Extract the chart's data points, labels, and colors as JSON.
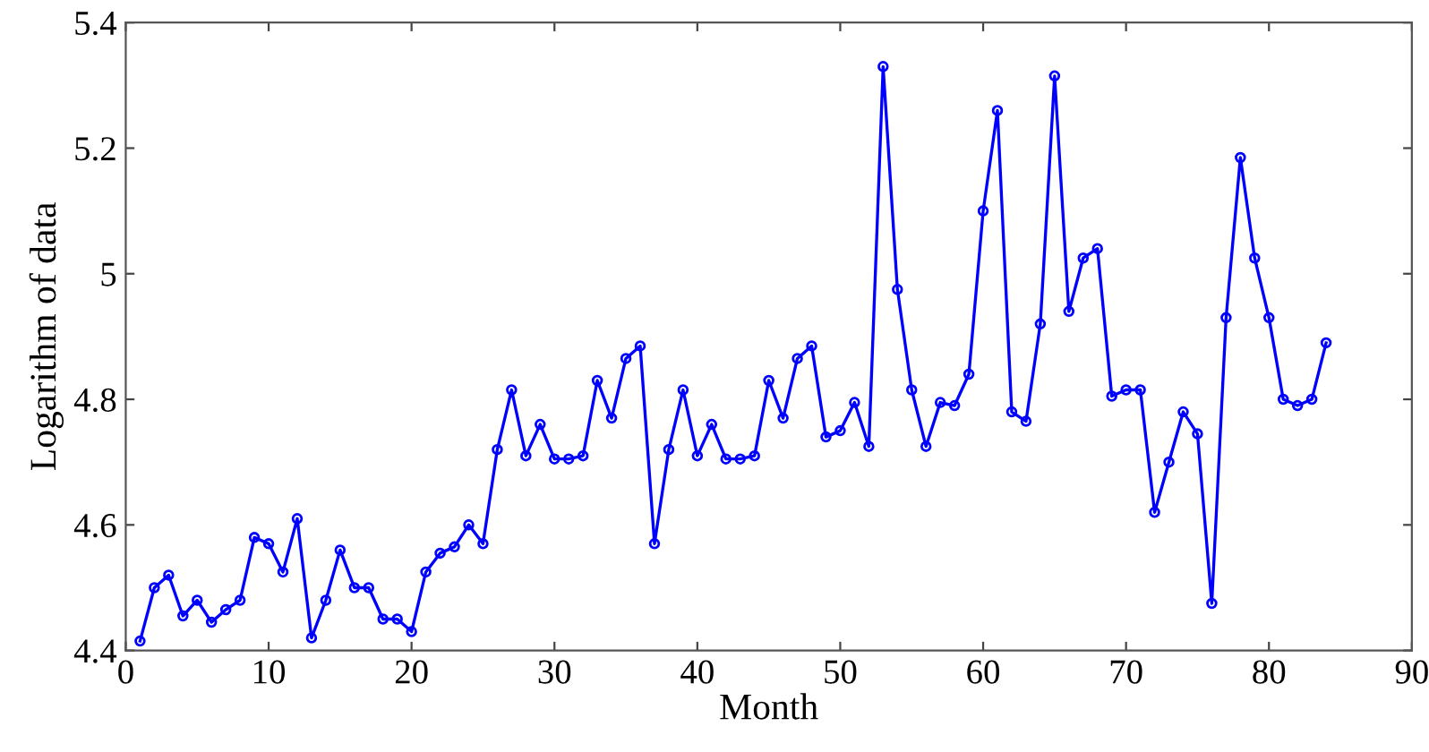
{
  "chart_data": {
    "type": "line",
    "xlabel": "Month",
    "ylabel": "Logarithm of data",
    "x": [
      1,
      2,
      3,
      4,
      5,
      6,
      7,
      8,
      9,
      10,
      11,
      12,
      13,
      14,
      15,
      16,
      17,
      18,
      19,
      20,
      21,
      22,
      23,
      24,
      25,
      26,
      27,
      28,
      29,
      30,
      31,
      32,
      33,
      34,
      35,
      36,
      37,
      38,
      39,
      40,
      41,
      42,
      43,
      44,
      45,
      46,
      47,
      48,
      49,
      50,
      51,
      52,
      53,
      54,
      55,
      56,
      57,
      58,
      59,
      60,
      61,
      62,
      63,
      64,
      65,
      66,
      67,
      68,
      69,
      70,
      71,
      72,
      73,
      74,
      75,
      76,
      77,
      78,
      79,
      80,
      81,
      82,
      83,
      84
    ],
    "series": [
      {
        "color": "#0000ff",
        "values": [
          4.415,
          4.5,
          4.52,
          4.455,
          4.48,
          4.445,
          4.465,
          4.48,
          4.58,
          4.57,
          4.525,
          4.61,
          4.42,
          4.48,
          4.56,
          4.5,
          4.5,
          4.45,
          4.45,
          4.43,
          4.525,
          4.555,
          4.565,
          4.6,
          4.57,
          4.72,
          4.815,
          4.71,
          4.76,
          4.705,
          4.705,
          4.71,
          4.83,
          4.77,
          4.865,
          4.885,
          4.57,
          4.72,
          4.815,
          4.71,
          4.76,
          4.705,
          4.705,
          4.71,
          4.83,
          4.77,
          4.865,
          4.885,
          4.74,
          4.75,
          4.795,
          4.725,
          5.33,
          4.975,
          4.815,
          4.725,
          4.795,
          4.79,
          4.84,
          5.1,
          5.26,
          4.78,
          4.765,
          4.92,
          5.315,
          4.94,
          5.025,
          5.04,
          4.805,
          4.815,
          4.815,
          4.62,
          4.7,
          4.78,
          4.745,
          4.475,
          4.93,
          5.185,
          5.025,
          4.93,
          4.8,
          4.79,
          4.8,
          4.89
        ]
      }
    ],
    "xlim": [
      0,
      90
    ],
    "xticks": [
      0,
      10,
      20,
      30,
      40,
      50,
      60,
      70,
      80,
      90
    ],
    "ylim": [
      4.4,
      5.4
    ],
    "yticks": [
      4.4,
      4.6,
      4.8,
      5,
      5.2,
      5.4
    ],
    "marker": "circle",
    "line_style": "solid"
  }
}
